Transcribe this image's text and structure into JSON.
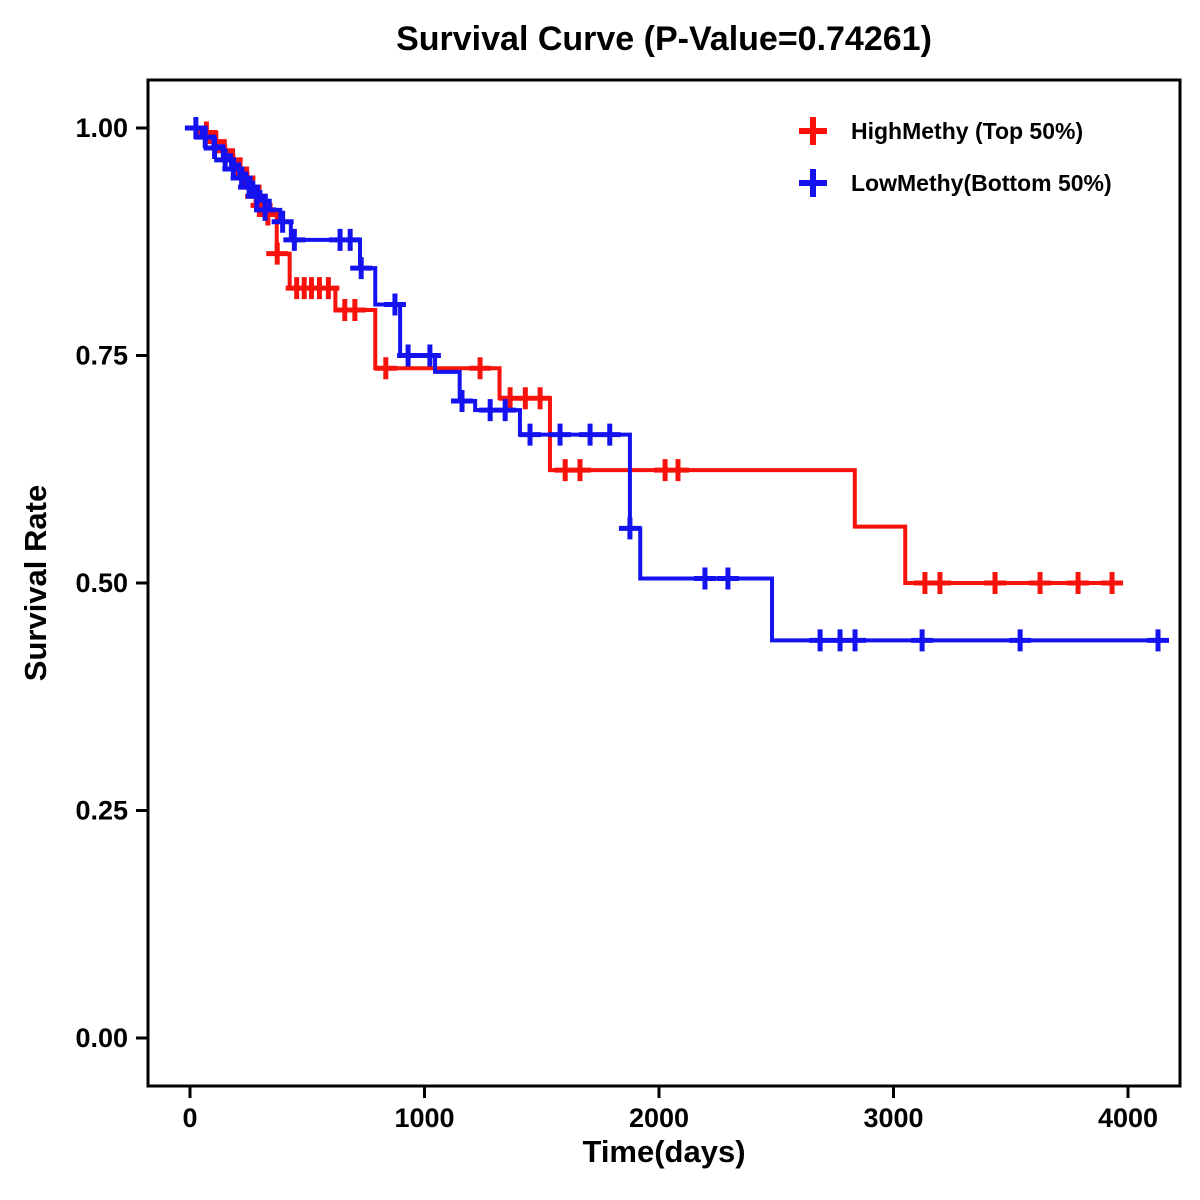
{
  "chart_data": {
    "type": "line",
    "subtype": "kaplan-meier-step",
    "title": "Survival Curve (P-Value=0.74261)",
    "p_value": "0.74261",
    "xlabel": "Time(days)",
    "ylabel": "Survival Rate",
    "xlim": [
      -180,
      4220
    ],
    "ylim": [
      -0.05,
      1.05
    ],
    "x_ticks": [
      0,
      1000,
      2000,
      3000,
      4000
    ],
    "x_tick_labels": [
      "0",
      "1000",
      "2000",
      "3000",
      "4000"
    ],
    "y_ticks": [
      0,
      0.25,
      0.5,
      0.75,
      1.0
    ],
    "y_tick_labels": [
      "0.00",
      "0.25",
      "0.50",
      "0.75",
      "1.00"
    ],
    "grid": false,
    "legend": {
      "position": "top-right",
      "items": [
        {
          "label": "HighMethy (Top 50%)",
          "color": "#F8120C",
          "marker": "plus"
        },
        {
          "label": "LowMethy(Bottom 50%)",
          "color": "#1512F0",
          "marker": "plus"
        }
      ]
    },
    "series": [
      {
        "name": "HighMethy (Top 50%)",
        "color": "#F8120C",
        "end_time": 3965,
        "steps": [
          [
            0,
            1.0
          ],
          [
            60,
            0.99
          ],
          [
            110,
            0.98
          ],
          [
            150,
            0.97
          ],
          [
            185,
            0.96
          ],
          [
            215,
            0.95
          ],
          [
            245,
            0.94
          ],
          [
            265,
            0.93
          ],
          [
            285,
            0.92
          ],
          [
            310,
            0.91
          ],
          [
            370,
            0.862
          ],
          [
            425,
            0.824
          ],
          [
            620,
            0.8
          ],
          [
            790,
            0.736
          ],
          [
            1320,
            0.703
          ],
          [
            1535,
            0.624
          ],
          [
            2835,
            0.562
          ],
          [
            3050,
            0.5
          ]
        ],
        "censors": [
          [
            70,
            0.995
          ],
          [
            110,
            0.985
          ],
          [
            145,
            0.975
          ],
          [
            178,
            0.965
          ],
          [
            205,
            0.955
          ],
          [
            232,
            0.945
          ],
          [
            258,
            0.935
          ],
          [
            282,
            0.925
          ],
          [
            305,
            0.915
          ],
          [
            332,
            0.905
          ],
          [
            372,
            0.862
          ],
          [
            455,
            0.824
          ],
          [
            487,
            0.824
          ],
          [
            518,
            0.824
          ],
          [
            552,
            0.824
          ],
          [
            590,
            0.824
          ],
          [
            660,
            0.8
          ],
          [
            703,
            0.8
          ],
          [
            835,
            0.736
          ],
          [
            1237,
            0.736
          ],
          [
            1365,
            0.703
          ],
          [
            1430,
            0.703
          ],
          [
            1493,
            0.703
          ],
          [
            1600,
            0.624
          ],
          [
            1663,
            0.624
          ],
          [
            2026,
            0.624
          ],
          [
            2081,
            0.624
          ],
          [
            3134,
            0.5
          ],
          [
            3198,
            0.5
          ],
          [
            3433,
            0.5
          ],
          [
            3625,
            0.5
          ],
          [
            3787,
            0.5
          ],
          [
            3932,
            0.5
          ]
        ]
      },
      {
        "name": "LowMethy(Bottom 50%)",
        "color": "#1512F0",
        "end_time": 4136,
        "steps": [
          [
            0,
            1.0
          ],
          [
            50,
            0.99
          ],
          [
            100,
            0.98
          ],
          [
            140,
            0.97
          ],
          [
            175,
            0.96
          ],
          [
            210,
            0.95
          ],
          [
            240,
            0.94
          ],
          [
            270,
            0.93
          ],
          [
            300,
            0.92
          ],
          [
            340,
            0.91
          ],
          [
            385,
            0.897
          ],
          [
            430,
            0.877
          ],
          [
            725,
            0.846
          ],
          [
            790,
            0.806
          ],
          [
            896,
            0.75
          ],
          [
            1045,
            0.732
          ],
          [
            1150,
            0.7
          ],
          [
            1216,
            0.69
          ],
          [
            1407,
            0.663
          ],
          [
            1876,
            0.56
          ],
          [
            1920,
            0.505
          ],
          [
            2482,
            0.437
          ]
        ],
        "censors": [
          [
            25,
            1.0
          ],
          [
            65,
            0.99
          ],
          [
            105,
            0.978
          ],
          [
            150,
            0.965
          ],
          [
            185,
            0.955
          ],
          [
            220,
            0.945
          ],
          [
            252,
            0.935
          ],
          [
            285,
            0.925
          ],
          [
            320,
            0.91
          ],
          [
            395,
            0.897
          ],
          [
            445,
            0.877
          ],
          [
            640,
            0.877
          ],
          [
            683,
            0.877
          ],
          [
            730,
            0.846
          ],
          [
            874,
            0.806
          ],
          [
            930,
            0.75
          ],
          [
            1023,
            0.75
          ],
          [
            1160,
            0.7
          ],
          [
            1280,
            0.69
          ],
          [
            1344,
            0.69
          ],
          [
            1450,
            0.663
          ],
          [
            1578,
            0.663
          ],
          [
            1706,
            0.663
          ],
          [
            1790,
            0.663
          ],
          [
            1876,
            0.56
          ],
          [
            2196,
            0.505
          ],
          [
            2294,
            0.505
          ],
          [
            2687,
            0.437
          ],
          [
            2772,
            0.437
          ],
          [
            2836,
            0.437
          ],
          [
            3122,
            0.437
          ],
          [
            3540,
            0.437
          ],
          [
            4128,
            0.437
          ]
        ]
      }
    ]
  }
}
